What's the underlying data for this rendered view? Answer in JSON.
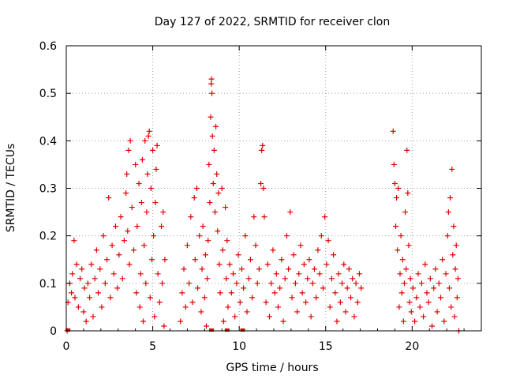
{
  "chart_data": {
    "type": "scatter",
    "title": "Day 127 of 2022, SRMTID for receiver clon",
    "xlabel": "GPS time / hours",
    "ylabel": "SRMTID / TECUs",
    "xlim": [
      0,
      24
    ],
    "ylim": [
      0,
      0.6
    ],
    "xticks": [
      0,
      5,
      10,
      15,
      20
    ],
    "yticks": [
      0,
      0.1,
      0.2,
      0.3,
      0.4,
      0.5,
      0.6
    ],
    "xtick_labels": [
      "0",
      "5",
      "10",
      "15",
      "20"
    ],
    "ytick_labels": [
      "0",
      "0.1",
      "0.2",
      "0.3",
      "0.4",
      "0.5",
      "0.6"
    ],
    "grid": true,
    "marker": "+",
    "series": [
      {
        "name": "SRMTID",
        "color": "#e00000",
        "points": [
          [
            0.05,
            0.0
          ],
          [
            0.1,
            0.06
          ],
          [
            0.2,
            0.1
          ],
          [
            0.3,
            0.08
          ],
          [
            0.35,
            0.12
          ],
          [
            0.45,
            0.19
          ],
          [
            0.5,
            0.07
          ],
          [
            0.6,
            0.14
          ],
          [
            0.7,
            0.05
          ],
          [
            0.8,
            0.11
          ],
          [
            0.9,
            0.13
          ],
          [
            1.0,
            0.04
          ],
          [
            1.05,
            0.09
          ],
          [
            1.15,
            0.02
          ],
          [
            1.25,
            0.1
          ],
          [
            1.35,
            0.07
          ],
          [
            1.45,
            0.14
          ],
          [
            1.55,
            0.03
          ],
          [
            1.65,
            0.11
          ],
          [
            1.75,
            0.17
          ],
          [
            1.85,
            0.08
          ],
          [
            1.95,
            0.13
          ],
          [
            2.05,
            0.05
          ],
          [
            2.15,
            0.2
          ],
          [
            2.25,
            0.1
          ],
          [
            2.35,
            0.15
          ],
          [
            2.45,
            0.28
          ],
          [
            2.55,
            0.07
          ],
          [
            2.65,
            0.18
          ],
          [
            2.75,
            0.12
          ],
          [
            2.85,
            0.22
          ],
          [
            2.95,
            0.09
          ],
          [
            3.05,
            0.16
          ],
          [
            3.15,
            0.24
          ],
          [
            3.25,
            0.11
          ],
          [
            3.35,
            0.19
          ],
          [
            3.45,
            0.29
          ],
          [
            3.5,
            0.33
          ],
          [
            3.55,
            0.21
          ],
          [
            3.6,
            0.38
          ],
          [
            3.65,
            0.14
          ],
          [
            3.7,
            0.4
          ],
          [
            3.8,
            0.26
          ],
          [
            3.9,
            0.17
          ],
          [
            4.0,
            0.35
          ],
          [
            4.05,
            0.08
          ],
          [
            4.1,
            0.22
          ],
          [
            4.2,
            0.31
          ],
          [
            4.25,
            0.05
          ],
          [
            4.3,
            0.12
          ],
          [
            4.35,
            0.27
          ],
          [
            4.4,
            0.36
          ],
          [
            4.45,
            0.02
          ],
          [
            4.5,
            0.18
          ],
          [
            4.55,
            0.4
          ],
          [
            4.6,
            0.1
          ],
          [
            4.65,
            0.25
          ],
          [
            4.7,
            0.33
          ],
          [
            4.75,
            0.41
          ],
          [
            4.8,
            0.42
          ],
          [
            4.85,
            0.07
          ],
          [
            4.9,
            0.3
          ],
          [
            4.95,
            0.15
          ],
          [
            5.0,
            0.38
          ],
          [
            5.05,
            0.2
          ],
          [
            5.1,
            0.03
          ],
          [
            5.15,
            0.27
          ],
          [
            5.2,
            0.34
          ],
          [
            5.25,
            0.39
          ],
          [
            5.3,
            0.12
          ],
          [
            5.4,
            0.06
          ],
          [
            5.5,
            0.22
          ],
          [
            5.55,
            0.1
          ],
          [
            5.6,
            0.25
          ],
          [
            5.65,
            0.01
          ],
          [
            5.7,
            0.15
          ],
          [
            6.6,
            0.02
          ],
          [
            6.7,
            0.08
          ],
          [
            6.8,
            0.13
          ],
          [
            6.9,
            0.05
          ],
          [
            7.0,
            0.18
          ],
          [
            7.1,
            0.1
          ],
          [
            7.2,
            0.24
          ],
          [
            7.3,
            0.06
          ],
          [
            7.4,
            0.28
          ],
          [
            7.45,
            0.15
          ],
          [
            7.55,
            0.3
          ],
          [
            7.6,
            0.09
          ],
          [
            7.7,
            0.2
          ],
          [
            7.8,
            0.04
          ],
          [
            7.85,
            0.13
          ],
          [
            7.9,
            0.22
          ],
          [
            8.0,
            0.07
          ],
          [
            8.05,
            0.16
          ],
          [
            8.1,
            0.01
          ],
          [
            8.15,
            0.11
          ],
          [
            8.2,
            0.19
          ],
          [
            8.25,
            0.35
          ],
          [
            8.3,
            0.27
          ],
          [
            8.35,
            0.45
          ],
          [
            8.38,
            0.52
          ],
          [
            8.4,
            0.53
          ],
          [
            8.42,
            0.5
          ],
          [
            8.45,
            0.41
          ],
          [
            8.5,
            0.31
          ],
          [
            8.55,
            0.38
          ],
          [
            8.6,
            0.25
          ],
          [
            8.65,
            0.43
          ],
          [
            8.7,
            0.33
          ],
          [
            8.75,
            0.21
          ],
          [
            8.8,
            0.29
          ],
          [
            8.85,
            0.14
          ],
          [
            8.9,
            0.08
          ],
          [
            9.0,
            0.3
          ],
          [
            9.05,
            0.17
          ],
          [
            9.1,
            0.02
          ],
          [
            9.2,
            0.26
          ],
          [
            9.25,
            0.11
          ],
          [
            9.3,
            0.19
          ],
          [
            9.35,
            0.05
          ],
          [
            9.45,
            0.14
          ],
          [
            9.55,
            0.08
          ],
          [
            9.65,
            0.12
          ],
          [
            9.75,
            0.03
          ],
          [
            9.85,
            0.1
          ],
          [
            9.95,
            0.16
          ],
          [
            10.05,
            0.06
          ],
          [
            10.15,
            0.13
          ],
          [
            10.25,
            0.09
          ],
          [
            10.35,
            0.2
          ],
          [
            10.45,
            0.04
          ],
          [
            10.55,
            0.11
          ],
          [
            10.65,
            0.15
          ],
          [
            10.75,
            0.07
          ],
          [
            10.85,
            0.24
          ],
          [
            10.95,
            0.18
          ],
          [
            11.05,
            0.1
          ],
          [
            11.15,
            0.13
          ],
          [
            11.25,
            0.31
          ],
          [
            11.3,
            0.38
          ],
          [
            11.35,
            0.39
          ],
          [
            11.4,
            0.3
          ],
          [
            11.45,
            0.24
          ],
          [
            11.55,
            0.06
          ],
          [
            11.65,
            0.14
          ],
          [
            11.75,
            0.03
          ],
          [
            11.85,
            0.1
          ],
          [
            11.95,
            0.17
          ],
          [
            12.05,
            0.08
          ],
          [
            12.15,
            0.12
          ],
          [
            12.25,
            0.05
          ],
          [
            12.35,
            0.09
          ],
          [
            12.45,
            0.15
          ],
          [
            12.55,
            0.02
          ],
          [
            12.65,
            0.11
          ],
          [
            12.75,
            0.2
          ],
          [
            12.85,
            0.13
          ],
          [
            12.95,
            0.25
          ],
          [
            13.05,
            0.07
          ],
          [
            13.15,
            0.16
          ],
          [
            13.25,
            0.1
          ],
          [
            13.35,
            0.04
          ],
          [
            13.45,
            0.12
          ],
          [
            13.55,
            0.18
          ],
          [
            13.65,
            0.08
          ],
          [
            13.75,
            0.14
          ],
          [
            13.85,
            0.06
          ],
          [
            13.95,
            0.11
          ],
          [
            14.05,
            0.15
          ],
          [
            14.15,
            0.03
          ],
          [
            14.25,
            0.1
          ],
          [
            14.35,
            0.13
          ],
          [
            14.45,
            0.07
          ],
          [
            14.55,
            0.17
          ],
          [
            14.65,
            0.12
          ],
          [
            14.75,
            0.2
          ],
          [
            14.85,
            0.09
          ],
          [
            14.95,
            0.24
          ],
          [
            15.05,
            0.14
          ],
          [
            15.15,
            0.19
          ],
          [
            15.25,
            0.05
          ],
          [
            15.35,
            0.11
          ],
          [
            15.45,
            0.16
          ],
          [
            15.55,
            0.08
          ],
          [
            15.65,
            0.02
          ],
          [
            15.75,
            0.12
          ],
          [
            15.85,
            0.06
          ],
          [
            15.95,
            0.1
          ],
          [
            16.05,
            0.14
          ],
          [
            16.15,
            0.04
          ],
          [
            16.25,
            0.09
          ],
          [
            16.35,
            0.13
          ],
          [
            16.45,
            0.07
          ],
          [
            16.55,
            0.11
          ],
          [
            16.65,
            0.03
          ],
          [
            16.75,
            0.1
          ],
          [
            16.85,
            0.06
          ],
          [
            16.95,
            0.12
          ],
          [
            17.05,
            0.09
          ],
          [
            18.9,
            0.42
          ],
          [
            18.95,
            0.35
          ],
          [
            19.0,
            0.31
          ],
          [
            19.05,
            0.22
          ],
          [
            19.1,
            0.28
          ],
          [
            19.15,
            0.17
          ],
          [
            19.2,
            0.3
          ],
          [
            19.25,
            0.05
          ],
          [
            19.3,
            0.12
          ],
          [
            19.35,
            0.2
          ],
          [
            19.4,
            0.08
          ],
          [
            19.45,
            0.15
          ],
          [
            19.5,
            0.02
          ],
          [
            19.55,
            0.1
          ],
          [
            19.6,
            0.25
          ],
          [
            19.65,
            0.13
          ],
          [
            19.7,
            0.38
          ],
          [
            19.75,
            0.29
          ],
          [
            19.8,
            0.18
          ],
          [
            19.85,
            0.06
          ],
          [
            19.9,
            0.11
          ],
          [
            19.95,
            0.04
          ],
          [
            20.05,
            0.09
          ],
          [
            20.15,
            0.02
          ],
          [
            20.25,
            0.07
          ],
          [
            20.35,
            0.12
          ],
          [
            20.45,
            0.05
          ],
          [
            20.55,
            0.1
          ],
          [
            20.65,
            0.03
          ],
          [
            20.75,
            0.14
          ],
          [
            20.85,
            0.08
          ],
          [
            20.95,
            0.06
          ],
          [
            21.05,
            0.11
          ],
          [
            21.15,
            0.01
          ],
          [
            21.25,
            0.09
          ],
          [
            21.35,
            0.13
          ],
          [
            21.45,
            0.04
          ],
          [
            21.55,
            0.1
          ],
          [
            21.65,
            0.07
          ],
          [
            21.75,
            0.15
          ],
          [
            21.85,
            0.02
          ],
          [
            21.95,
            0.12
          ],
          [
            22.05,
            0.2
          ],
          [
            22.1,
            0.25
          ],
          [
            22.15,
            0.09
          ],
          [
            22.2,
            0.28
          ],
          [
            22.25,
            0.05
          ],
          [
            22.3,
            0.34
          ],
          [
            22.35,
            0.16
          ],
          [
            22.4,
            0.22
          ],
          [
            22.45,
            0.03
          ],
          [
            22.5,
            0.13
          ],
          [
            22.55,
            0.18
          ],
          [
            22.6,
            0.07
          ],
          [
            22.65,
            0.11
          ],
          [
            22.7,
            0.0
          ]
        ]
      }
    ],
    "zero_markers": [
      0.1,
      8.4,
      9.3,
      10.2
    ]
  }
}
